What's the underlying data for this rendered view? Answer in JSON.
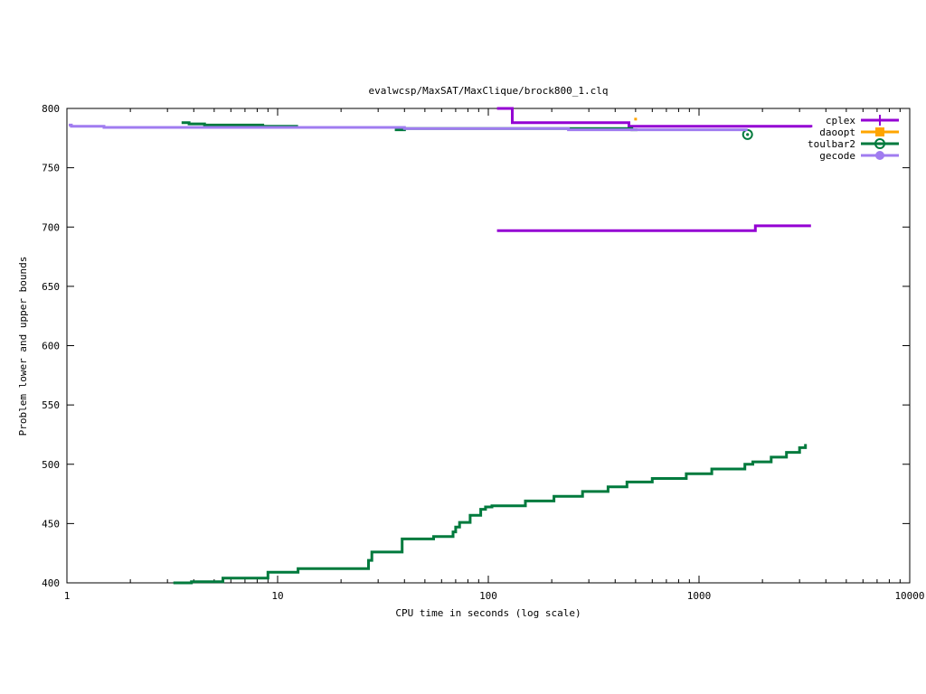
{
  "chart_data": {
    "type": "line",
    "title": "evalwcsp/MaxSAT/MaxClique/brock800_1.clq",
    "xlabel": "CPU time in seconds (log scale)",
    "ylabel": "Problem lower and upper bounds",
    "xscale": "log",
    "xlim": [
      1,
      10000
    ],
    "ylim": [
      400,
      800
    ],
    "x_ticks": [
      {
        "v": 1,
        "label": "1"
      },
      {
        "v": 10,
        "label": "10"
      },
      {
        "v": 100,
        "label": "100"
      },
      {
        "v": 1000,
        "label": "1000"
      },
      {
        "v": 10000,
        "label": "10000"
      }
    ],
    "y_ticks": [
      {
        "v": 400,
        "label": "400"
      },
      {
        "v": 450,
        "label": "450"
      },
      {
        "v": 500,
        "label": "500"
      },
      {
        "v": 550,
        "label": "550"
      },
      {
        "v": 600,
        "label": "600"
      },
      {
        "v": 650,
        "label": "650"
      },
      {
        "v": 700,
        "label": "700"
      },
      {
        "v": 750,
        "label": "750"
      },
      {
        "v": 800,
        "label": "800"
      }
    ],
    "grid": false,
    "legend_position": "top-right",
    "series": [
      {
        "name": "cplex",
        "color": "#9400d3",
        "marker": "plus",
        "segments": [
          {
            "step": true,
            "points": [
              [
                110,
                800
              ],
              [
                130,
                800
              ],
              [
                130,
                788
              ],
              [
                465,
                788
              ],
              [
                465,
                785
              ],
              [
                3400,
                785
              ],
              [
                3400,
                784
              ]
            ]
          },
          {
            "step": true,
            "points": [
              [
                110,
                697
              ],
              [
                1850,
                697
              ],
              [
                1850,
                701
              ],
              [
                3400,
                701
              ]
            ]
          }
        ],
        "points": []
      },
      {
        "name": "daoopt",
        "color": "#ffa500",
        "marker": "square",
        "segments": [],
        "points": [
          [
            500,
            791
          ]
        ]
      },
      {
        "name": "toulbar2",
        "color": "#007a3d",
        "marker": "circle-open",
        "segments": [
          {
            "step": true,
            "points": [
              [
                3.5,
                788
              ],
              [
                3.8,
                788
              ],
              [
                3.8,
                787
              ],
              [
                4.5,
                787
              ],
              [
                4.5,
                786
              ],
              [
                8.5,
                786
              ],
              [
                8.5,
                785
              ],
              [
                12.5,
                785
              ]
            ]
          },
          {
            "step": true,
            "points": [
              [
                36,
                782
              ],
              [
                40,
                782
              ],
              [
                40,
                783
              ],
              [
                480,
                783
              ],
              [
                480,
                782
              ],
              [
                510,
                782
              ]
            ]
          },
          {
            "step": true,
            "points": [
              [
                3.2,
                400
              ],
              [
                3.9,
                400
              ],
              [
                3.9,
                401
              ],
              [
                5.5,
                401
              ],
              [
                5.5,
                404
              ],
              [
                9,
                404
              ],
              [
                9,
                409
              ],
              [
                12.5,
                409
              ],
              [
                12.5,
                412
              ],
              [
                27,
                412
              ],
              [
                27,
                419
              ],
              [
                28,
                419
              ],
              [
                28,
                426
              ],
              [
                39,
                426
              ],
              [
                39,
                437
              ],
              [
                55,
                437
              ],
              [
                55,
                439
              ],
              [
                68,
                439
              ],
              [
                68,
                443
              ],
              [
                70,
                443
              ],
              [
                70,
                447
              ],
              [
                73,
                447
              ],
              [
                73,
                451
              ],
              [
                82,
                451
              ],
              [
                82,
                457
              ],
              [
                92,
                457
              ],
              [
                92,
                462
              ],
              [
                97,
                462
              ],
              [
                97,
                464
              ],
              [
                104,
                464
              ],
              [
                104,
                465
              ],
              [
                150,
                465
              ],
              [
                150,
                469
              ],
              [
                205,
                469
              ],
              [
                205,
                473
              ],
              [
                280,
                473
              ],
              [
                280,
                477
              ],
              [
                370,
                477
              ],
              [
                370,
                481
              ],
              [
                455,
                481
              ],
              [
                455,
                485
              ],
              [
                600,
                485
              ],
              [
                600,
                488
              ],
              [
                870,
                488
              ],
              [
                870,
                492
              ],
              [
                1150,
                492
              ],
              [
                1150,
                496
              ],
              [
                1650,
                496
              ],
              [
                1650,
                500
              ],
              [
                1800,
                500
              ],
              [
                1800,
                502
              ],
              [
                2200,
                502
              ],
              [
                2200,
                506
              ],
              [
                2600,
                506
              ],
              [
                2600,
                510
              ],
              [
                3000,
                510
              ],
              [
                3000,
                514
              ],
              [
                3200,
                514
              ],
              [
                3200,
                517
              ]
            ]
          }
        ],
        "points": [
          [
            1700,
            778
          ]
        ]
      },
      {
        "name": "gecode",
        "color": "#a07cf0",
        "marker": "circle-filled",
        "segments": [
          {
            "step": true,
            "points": [
              [
                1.02,
                786
              ],
              [
                1.05,
                786
              ],
              [
                1.05,
                785
              ],
              [
                1.5,
                785
              ],
              [
                1.5,
                784
              ],
              [
                40,
                784
              ],
              [
                40,
                783
              ],
              [
                240,
                783
              ],
              [
                240,
                782
              ],
              [
                1700,
                782
              ]
            ]
          }
        ],
        "points": []
      }
    ]
  }
}
